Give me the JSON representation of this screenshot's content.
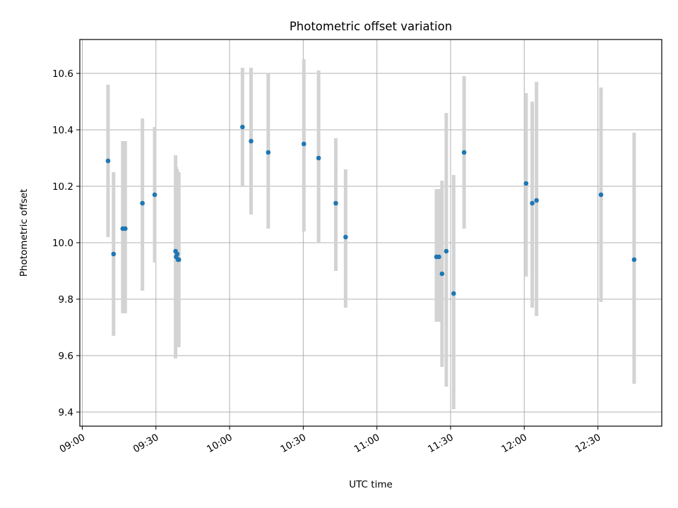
{
  "chart_data": {
    "type": "scatter",
    "title": "Photometric offset variation",
    "xlabel": "UTC time",
    "ylabel": "Photometric offset",
    "xlim": [
      "08:59",
      "12:56"
    ],
    "ylim": [
      9.35,
      10.72
    ],
    "x_ticks": [
      "09:00",
      "09:30",
      "10:00",
      "10:30",
      "11:00",
      "11:30",
      "12:00",
      "12:30"
    ],
    "y_ticks": [
      "9.4",
      "9.6",
      "9.8",
      "10.0",
      "10.2",
      "10.4",
      "10.6"
    ],
    "grid": true,
    "error_bar_color": "#d3d3d3",
    "point_color": "#1f77b4",
    "points": [
      {
        "t": "09:10:30",
        "y": 10.29,
        "lo": 10.02,
        "hi": 10.56
      },
      {
        "t": "09:12:45",
        "y": 9.96,
        "lo": 9.67,
        "hi": 10.25
      },
      {
        "t": "09:16:30",
        "y": 10.05,
        "lo": 9.75,
        "hi": 10.36
      },
      {
        "t": "09:17:30",
        "y": 10.05,
        "lo": 9.75,
        "hi": 10.36
      },
      {
        "t": "09:24:30",
        "y": 10.14,
        "lo": 9.83,
        "hi": 10.44
      },
      {
        "t": "09:29:30",
        "y": 10.17,
        "lo": 9.93,
        "hi": 10.41
      },
      {
        "t": "09:38:00",
        "y": 9.97,
        "lo": 9.59,
        "hi": 10.31
      },
      {
        "t": "09:38:15",
        "y": 9.95,
        "lo": 9.65,
        "hi": 10.27
      },
      {
        "t": "09:38:40",
        "y": 9.96,
        "lo": 9.63,
        "hi": 10.26
      },
      {
        "t": "09:39:00",
        "y": 9.94,
        "lo": 9.63,
        "hi": 10.25
      },
      {
        "t": "09:39:20",
        "y": 9.94,
        "lo": 9.63,
        "hi": 10.25
      },
      {
        "t": "10:05:15",
        "y": 10.41,
        "lo": 10.2,
        "hi": 10.62
      },
      {
        "t": "10:08:45",
        "y": 10.36,
        "lo": 10.1,
        "hi": 10.62
      },
      {
        "t": "10:15:45",
        "y": 10.32,
        "lo": 10.05,
        "hi": 10.6
      },
      {
        "t": "10:30:15",
        "y": 10.35,
        "lo": 10.04,
        "hi": 10.65
      },
      {
        "t": "10:36:15",
        "y": 10.3,
        "lo": 10.0,
        "hi": 10.61
      },
      {
        "t": "10:43:15",
        "y": 10.14,
        "lo": 9.9,
        "hi": 10.37
      },
      {
        "t": "10:47:15",
        "y": 10.02,
        "lo": 9.77,
        "hi": 10.26
      },
      {
        "t": "11:24:15",
        "y": 9.95,
        "lo": 9.72,
        "hi": 10.19
      },
      {
        "t": "11:25:15",
        "y": 9.95,
        "lo": 9.72,
        "hi": 10.19
      },
      {
        "t": "11:26:30",
        "y": 9.89,
        "lo": 9.56,
        "hi": 10.22
      },
      {
        "t": "11:28:15",
        "y": 9.97,
        "lo": 9.49,
        "hi": 10.46
      },
      {
        "t": "11:31:15",
        "y": 9.82,
        "lo": 9.41,
        "hi": 10.24
      },
      {
        "t": "11:35:30",
        "y": 10.32,
        "lo": 10.05,
        "hi": 10.59
      },
      {
        "t": "12:00:45",
        "y": 10.21,
        "lo": 9.88,
        "hi": 10.53
      },
      {
        "t": "12:03:15",
        "y": 10.14,
        "lo": 9.77,
        "hi": 10.5
      },
      {
        "t": "12:05:00",
        "y": 10.15,
        "lo": 9.74,
        "hi": 10.57
      },
      {
        "t": "12:31:15",
        "y": 10.17,
        "lo": 9.79,
        "hi": 10.55
      },
      {
        "t": "12:44:45",
        "y": 9.94,
        "lo": 9.5,
        "hi": 10.39
      }
    ]
  }
}
